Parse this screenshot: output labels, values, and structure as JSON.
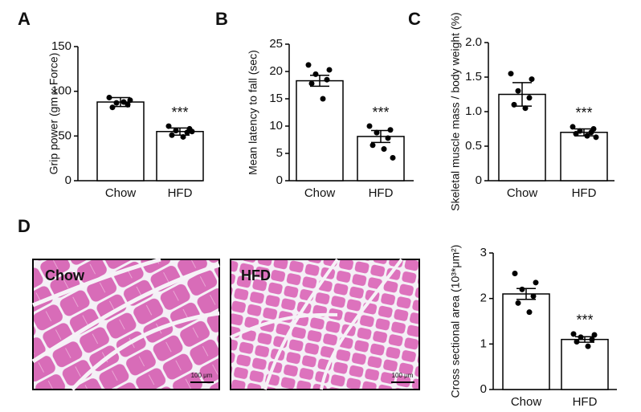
{
  "panels": [
    "A",
    "B",
    "C",
    "D"
  ],
  "micrographs": [
    {
      "label": "Chow",
      "scale_bar": "100 μm"
    },
    {
      "label": "HFD",
      "scale_bar": "100 μm"
    }
  ],
  "chart_data": [
    {
      "type": "bar",
      "ylabel": "Grip power (gm x Force)",
      "categories": [
        "Chow",
        "HFD"
      ],
      "values": [
        88,
        55
      ],
      "errors": [
        5,
        4
      ],
      "points": [
        [
          93,
          90,
          87,
          85,
          82,
          88
        ],
        [
          61,
          58,
          56,
          54,
          51,
          49,
          55
        ]
      ],
      "annotations": [
        "***"
      ],
      "color": "#ffffff",
      "ylim": [
        0,
        150
      ],
      "yticks": [
        0,
        50,
        100,
        150
      ]
    },
    {
      "type": "bar",
      "ylabel": "Mean latency to fall (sec)",
      "categories": [
        "Chow",
        "HFD"
      ],
      "values": [
        18.3,
        8.1
      ],
      "errors": [
        1,
        1.1
      ],
      "points": [
        [
          21.2,
          20.3,
          19.5,
          18.5,
          17.8,
          15
        ],
        [
          10,
          9.3,
          8.8,
          7.8,
          6.5,
          5.8,
          4.2
        ]
      ],
      "annotations": [
        "***"
      ],
      "color": "#ffffff",
      "ylim": [
        0,
        25
      ],
      "yticks": [
        0,
        5,
        10,
        15,
        20,
        25
      ]
    },
    {
      "type": "bar",
      "ylabel": "Skeletal muscle mass / body weight (%)",
      "categories": [
        "Chow",
        "HFD"
      ],
      "values": [
        1.25,
        0.7
      ],
      "errors": [
        0.17,
        0.05
      ],
      "points": [
        [
          1.55,
          1.47,
          1.3,
          1.2,
          1.1,
          1.05
        ],
        [
          0.78,
          0.75,
          0.72,
          0.7,
          0.68,
          0.65,
          0.63
        ]
      ],
      "annotations": [
        "***"
      ],
      "color": "#ffffff",
      "ylim": [
        0,
        2.0
      ],
      "yticks": [
        0,
        0.5,
        {
          "value": 1,
          "label": "1.0"
        },
        1.5,
        {
          "value": 2,
          "label": "2.0"
        }
      ]
    },
    {
      "type": "bar",
      "ylabel": "Cross sectional area (10³*μm²)",
      "categories": [
        "Chow",
        "HFD"
      ],
      "values": [
        2.1,
        1.1
      ],
      "errors": [
        0.12,
        0.06
      ],
      "points": [
        [
          2.55,
          2.35,
          2.2,
          2.05,
          1.9,
          1.7
        ],
        [
          1.22,
          1.2,
          1.15,
          1.1,
          1.05,
          0.95
        ]
      ],
      "annotations": [
        "***"
      ],
      "color": "#ffffff",
      "ylim": [
        0,
        3
      ],
      "yticks": [
        0,
        1,
        2,
        3
      ]
    }
  ]
}
